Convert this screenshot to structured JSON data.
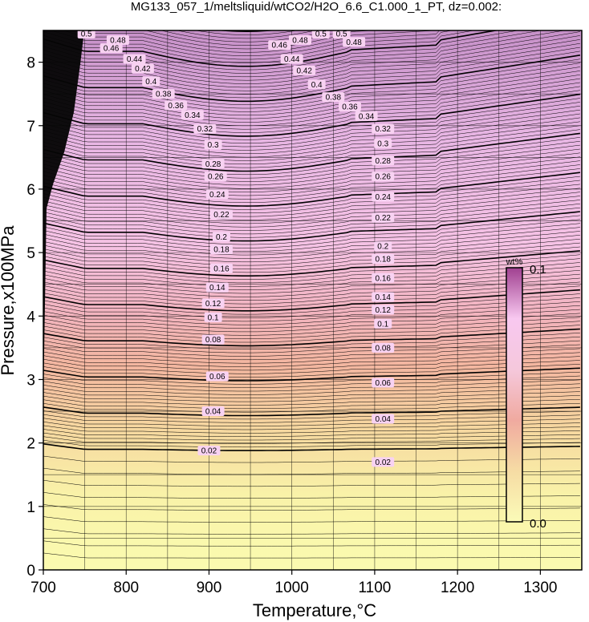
{
  "chart_data": {
    "type": "heatmap",
    "title": "MG133_057_1/meltsliquid/wtCO2/H2O_6.6_C1.000_1_PT, dz=0.002:",
    "xlabel": "Temperature,°C",
    "ylabel": "Pressure,x100MPa",
    "xlim": [
      700,
      1350
    ],
    "ylim": [
      0,
      8.5
    ],
    "x_ticks": [
      700,
      800,
      900,
      1000,
      1100,
      1200,
      1300
    ],
    "y_ticks": [
      0,
      1,
      2,
      3,
      4,
      5,
      6,
      7,
      8
    ],
    "grid": true,
    "contour_interval": 0.002,
    "colorbar": {
      "unit": "wt%",
      "max_label": "0.1",
      "min_label": "0.0",
      "placement": "right-inside",
      "colors": [
        "#fbfbb8",
        "#f6dca4",
        "#f0aaa0",
        "#f5c8dc",
        "#f8c8f0",
        "#a04090"
      ]
    },
    "labeled_contours": [
      {
        "value": 0.02,
        "label": "0.02",
        "label_points": [
          [
            900,
            1.88
          ],
          [
            1110,
            1.7
          ]
        ]
      },
      {
        "value": 0.04,
        "label": "0.04",
        "label_points": [
          [
            905,
            2.5
          ],
          [
            1110,
            2.38
          ]
        ]
      },
      {
        "value": 0.06,
        "label": "0.06",
        "label_points": [
          [
            910,
            3.05
          ],
          [
            1110,
            2.95
          ]
        ]
      },
      {
        "value": 0.08,
        "label": "0.08",
        "label_points": [
          [
            905,
            3.63
          ],
          [
            1110,
            3.5
          ]
        ]
      },
      {
        "value": 0.1,
        "label": "0.1",
        "label_points": [
          [
            905,
            3.98
          ],
          [
            1110,
            3.88
          ]
        ]
      },
      {
        "value": 0.12,
        "label": "0.12",
        "label_points": [
          [
            905,
            4.2
          ],
          [
            1110,
            4.1
          ]
        ]
      },
      {
        "value": 0.14,
        "label": "0.14",
        "label_points": [
          [
            910,
            4.45
          ],
          [
            1110,
            4.3
          ]
        ]
      },
      {
        "value": 0.16,
        "label": "0.16",
        "label_points": [
          [
            915,
            4.75
          ],
          [
            1110,
            4.6
          ]
        ]
      },
      {
        "value": 0.18,
        "label": "0.18",
        "label_points": [
          [
            915,
            5.05
          ],
          [
            1110,
            4.9
          ]
        ]
      },
      {
        "value": 0.2,
        "label": "0.2",
        "label_points": [
          [
            915,
            5.25
          ],
          [
            1110,
            5.1
          ]
        ]
      },
      {
        "value": 0.22,
        "label": "0.22",
        "label_points": [
          [
            915,
            5.6
          ],
          [
            1110,
            5.55
          ]
        ]
      },
      {
        "value": 0.24,
        "label": "0.24",
        "label_points": [
          [
            910,
            5.92
          ],
          [
            1110,
            5.88
          ]
        ]
      },
      {
        "value": 0.26,
        "label": "0.26",
        "label_points": [
          [
            908,
            6.2
          ],
          [
            1110,
            6.2
          ]
        ]
      },
      {
        "value": 0.28,
        "label": "0.28",
        "label_points": [
          [
            905,
            6.4
          ],
          [
            1110,
            6.45
          ]
        ]
      },
      {
        "value": 0.3,
        "label": "0.3",
        "label_points": [
          [
            905,
            6.7
          ],
          [
            1110,
            6.72
          ]
        ]
      },
      {
        "value": 0.32,
        "label": "0.32",
        "label_points": [
          [
            895,
            6.95
          ],
          [
            1110,
            6.95
          ]
        ]
      },
      {
        "value": 0.34,
        "label": "0.34",
        "label_points": [
          [
            880,
            7.17
          ],
          [
            1090,
            7.15
          ]
        ]
      },
      {
        "value": 0.36,
        "label": "0.36",
        "label_points": [
          [
            860,
            7.32
          ],
          [
            1070,
            7.3
          ]
        ]
      },
      {
        "value": 0.38,
        "label": "0.38",
        "label_points": [
          [
            845,
            7.5
          ],
          [
            1050,
            7.45
          ]
        ]
      },
      {
        "value": 0.4,
        "label": "0.4",
        "label_points": [
          [
            830,
            7.7
          ],
          [
            1030,
            7.65
          ]
        ]
      },
      {
        "value": 0.42,
        "label": "0.42",
        "label_points": [
          [
            820,
            7.9
          ],
          [
            1015,
            7.87
          ]
        ]
      },
      {
        "value": 0.44,
        "label": "0.44",
        "label_points": [
          [
            810,
            8.05
          ],
          [
            1000,
            8.05
          ]
        ]
      },
      {
        "value": 0.46,
        "label": "0.46",
        "label_points": [
          [
            782,
            8.22
          ],
          [
            985,
            8.27
          ]
        ]
      },
      {
        "value": 0.48,
        "label": "0.48",
        "label_points": [
          [
            790,
            8.35
          ],
          [
            1010,
            8.35
          ],
          [
            1075,
            8.32
          ]
        ]
      },
      {
        "value": 0.5,
        "label": "0.5",
        "label_points": [
          [
            752,
            8.45
          ],
          [
            1035,
            8.45
          ],
          [
            1060,
            8.45
          ]
        ]
      }
    ]
  }
}
